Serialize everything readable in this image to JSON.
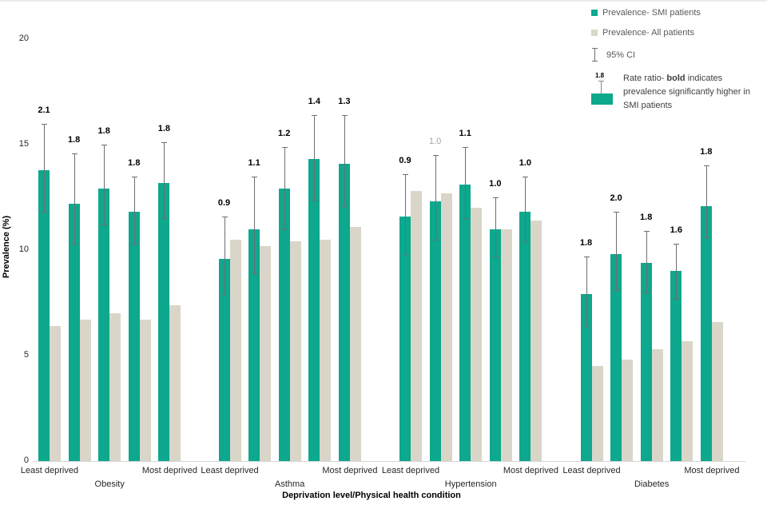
{
  "legend": {
    "smi_label": "Prevalence- SMI patients",
    "all_label": "Prevalence- All patients",
    "ci_label": "95% CI",
    "rr_value": "1.8",
    "rr_text_prefix": "Rate ratio- ",
    "rr_text_bold": "bold",
    "rr_text_suffix": " indicates prevalence significantly higher in SMI patients"
  },
  "colors": {
    "smi": "#0da88d",
    "all": "#d9d6c9",
    "error": "#6e6e6e",
    "axis_line": "#d6d6d6",
    "rr_significant": "#000000",
    "rr_nonsignificant": "#a6a6a6"
  },
  "chart_data": {
    "type": "bar",
    "xlabel": "Deprivation level/Physical health condition",
    "ylabel": "Prevalence (%)",
    "ylim": [
      0,
      20
    ],
    "yticks": [
      0,
      5,
      10,
      15,
      20
    ],
    "grid": false,
    "legend_position": "top-right",
    "series_names": [
      "Prevalence- SMI patients",
      "Prevalence- All patients"
    ],
    "groups": [
      {
        "condition": "Obesity",
        "deprivation_labels": [
          "Least deprived",
          "Most deprived"
        ],
        "bars": [
          {
            "smi": 13.8,
            "all": 6.4,
            "ci": [
              11.8,
              16.0
            ],
            "rate_ratio": "2.1",
            "significant": true
          },
          {
            "smi": 12.2,
            "all": 6.7,
            "ci": [
              10.3,
              14.6
            ],
            "rate_ratio": "1.8",
            "significant": true
          },
          {
            "smi": 12.9,
            "all": 7.0,
            "ci": [
              11.2,
              15.0
            ],
            "rate_ratio": "1.8",
            "significant": true
          },
          {
            "smi": 11.8,
            "all": 6.7,
            "ci": [
              10.3,
              13.5
            ],
            "rate_ratio": "1.8",
            "significant": true
          },
          {
            "smi": 13.2,
            "all": 7.4,
            "ci": [
              11.5,
              15.1
            ],
            "rate_ratio": "1.8",
            "significant": true
          }
        ]
      },
      {
        "condition": "Asthma",
        "deprivation_labels": [
          "Least deprived",
          "Most deprived"
        ],
        "bars": [
          {
            "smi": 9.6,
            "all": 10.5,
            "ci": [
              7.9,
              11.6
            ],
            "rate_ratio": "0.9",
            "significant": true
          },
          {
            "smi": 11.0,
            "all": 10.2,
            "ci": [
              8.9,
              13.5
            ],
            "rate_ratio": "1.1",
            "significant": true
          },
          {
            "smi": 12.9,
            "all": 10.4,
            "ci": [
              11.0,
              14.9
            ],
            "rate_ratio": "1.2",
            "significant": true
          },
          {
            "smi": 14.3,
            "all": 10.5,
            "ci": [
              12.4,
              16.4
            ],
            "rate_ratio": "1.4",
            "significant": true
          },
          {
            "smi": 14.1,
            "all": 11.1,
            "ci": [
              12.1,
              16.4
            ],
            "rate_ratio": "1.3",
            "significant": true
          }
        ]
      },
      {
        "condition": "Hypertension",
        "deprivation_labels": [
          "Least deprived",
          "Most deprived"
        ],
        "bars": [
          {
            "smi": 11.6,
            "all": 12.8,
            "ci": [
              9.8,
              13.6
            ],
            "rate_ratio": "0.9",
            "significant": true
          },
          {
            "smi": 12.3,
            "all": 12.7,
            "ci": [
              10.5,
              14.5
            ],
            "rate_ratio": "1.0",
            "significant": false
          },
          {
            "smi": 13.1,
            "all": 12.0,
            "ci": [
              11.5,
              14.9
            ],
            "rate_ratio": "1.1",
            "significant": true
          },
          {
            "smi": 11.0,
            "all": 11.0,
            "ci": [
              9.7,
              12.5
            ],
            "rate_ratio": "1.0",
            "significant": true
          },
          {
            "smi": 11.8,
            "all": 11.4,
            "ci": [
              10.4,
              13.5
            ],
            "rate_ratio": "1.0",
            "significant": true
          }
        ]
      },
      {
        "condition": "Diabetes",
        "deprivation_labels": [
          "Least deprived",
          "Most deprived"
        ],
        "bars": [
          {
            "smi": 7.9,
            "all": 4.5,
            "ci": [
              6.4,
              9.7
            ],
            "rate_ratio": "1.8",
            "significant": true
          },
          {
            "smi": 9.8,
            "all": 4.8,
            "ci": [
              8.1,
              11.8
            ],
            "rate_ratio": "2.0",
            "significant": true
          },
          {
            "smi": 9.4,
            "all": 5.3,
            "ci": [
              8.0,
              10.9
            ],
            "rate_ratio": "1.8",
            "significant": true
          },
          {
            "smi": 9.0,
            "all": 5.7,
            "ci": [
              7.7,
              10.3
            ],
            "rate_ratio": "1.6",
            "significant": true
          },
          {
            "smi": 12.1,
            "all": 6.6,
            "ci": [
              10.6,
              14.0
            ],
            "rate_ratio": "1.8",
            "significant": true
          }
        ]
      }
    ]
  }
}
